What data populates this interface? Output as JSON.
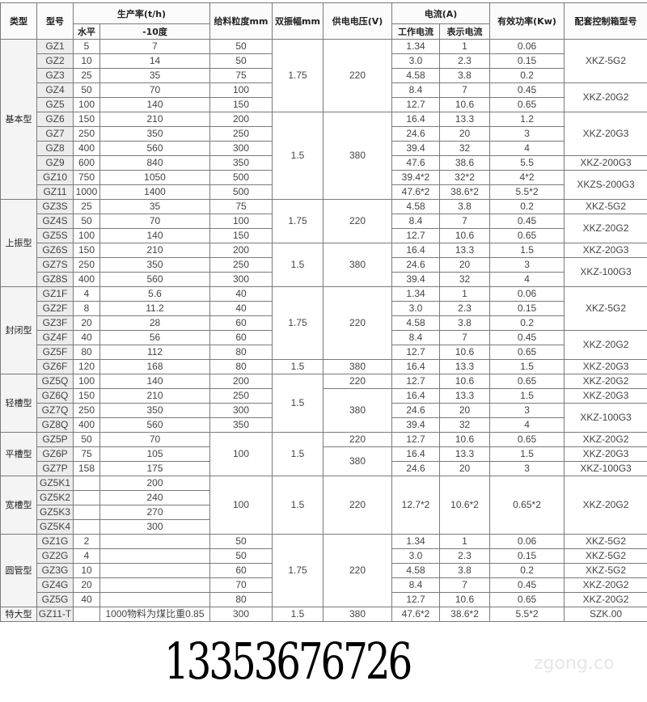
{
  "header": {
    "type": "类型",
    "model": "型号",
    "capacity": "生产率(t/h)",
    "horizontal": "水平",
    "minus10": "-10度",
    "feed_size": "给料粒度mm",
    "amplitude": "双振幅mm",
    "voltage": "供电电压(V)",
    "current": "电流(A)",
    "working_current": "工作电流",
    "indicated_current": "表示电流",
    "power": "有效功率(Kw)",
    "control_box": "配套控制箱型号"
  },
  "rows": [
    [
      "基本型",
      "GZ1",
      "5",
      "7",
      "50",
      "1.75",
      "220",
      "1.34",
      "1",
      "0.06",
      "XKZ-5G2"
    ],
    [
      null,
      "GZ2",
      "10",
      "14",
      "50",
      null,
      null,
      "3.0",
      "2.3",
      "0.15",
      null
    ],
    [
      null,
      "GZ3",
      "25",
      "35",
      "75",
      null,
      null,
      "4.58",
      "3.8",
      "0.2",
      null
    ],
    [
      null,
      "GZ4",
      "50",
      "70",
      "100",
      null,
      null,
      "8.4",
      "7",
      "0.45",
      "XKZ-20G2"
    ],
    [
      null,
      "GZ5",
      "100",
      "140",
      "150",
      null,
      null,
      "12.7",
      "10.6",
      "0.65",
      null
    ],
    [
      null,
      "GZ6",
      "150",
      "210",
      "200",
      "1.5",
      "380",
      "16.4",
      "13.3",
      "1.2",
      "XKZ-20G3"
    ],
    [
      null,
      "GZ7",
      "250",
      "350",
      "250",
      null,
      null,
      "24.6",
      "20",
      "3",
      null
    ],
    [
      null,
      "GZ8",
      "400",
      "560",
      "300",
      null,
      null,
      "39.4",
      "32",
      "4",
      null
    ],
    [
      null,
      "GZ9",
      "600",
      "840",
      "350",
      null,
      null,
      "47.6",
      "38.6",
      "5.5",
      "XKZ-200G3"
    ],
    [
      null,
      "GZ10",
      "750",
      "1050",
      "500",
      null,
      null,
      "39.4*2",
      "32*2",
      "4*2",
      "XKZS-200G3"
    ],
    [
      null,
      "GZ11",
      "1000",
      "1400",
      "500",
      null,
      null,
      "47.6*2",
      "38.6*2",
      "5.5*2",
      null
    ],
    [
      "上振型",
      "GZ3S",
      "25",
      "35",
      "75",
      "1.75",
      "220",
      "4.58",
      "3.8",
      "0.2",
      "XKZ-5G2"
    ],
    [
      null,
      "GZ4S",
      "50",
      "70",
      "100",
      null,
      null,
      "8.4",
      "7",
      "0.45",
      "XKZ-20G2"
    ],
    [
      null,
      "GZ5S",
      "100",
      "140",
      "150",
      null,
      null,
      "12.7",
      "10.6",
      "0.65",
      null
    ],
    [
      null,
      "GZ6S",
      "150",
      "210",
      "200",
      "1.5",
      "380",
      "16.4",
      "13.3",
      "1.5",
      "XKZ-20G3"
    ],
    [
      null,
      "GZ7S",
      "250",
      "350",
      "250",
      null,
      null,
      "24.6",
      "20",
      "3",
      "XKZ-100G3"
    ],
    [
      null,
      "GZ8S",
      "400",
      "560",
      "300",
      null,
      null,
      "39.4",
      "32",
      "4",
      null
    ],
    [
      "封闭型",
      "GZ1F",
      "4",
      "5.6",
      "40",
      "1.75",
      "220",
      "1.34",
      "1",
      "0.06",
      "XKZ-5G2"
    ],
    [
      null,
      "GZ2F",
      "8",
      "11.2",
      "40",
      null,
      null,
      "3.0",
      "2.3",
      "0.15",
      null
    ],
    [
      null,
      "GZ3F",
      "20",
      "28",
      "60",
      null,
      null,
      "4.58",
      "3.8",
      "0.2",
      null
    ],
    [
      null,
      "GZ4F",
      "40",
      "56",
      "60",
      null,
      null,
      "8.4",
      "7",
      "0.45",
      "XKZ-20G2"
    ],
    [
      null,
      "GZ5F",
      "80",
      "112",
      "80",
      null,
      null,
      "12.7",
      "10.6",
      "0.65",
      null
    ],
    [
      null,
      "GZ6F",
      "120",
      "168",
      "80",
      "1.5",
      "380",
      "16.4",
      "13.3",
      "1.5",
      "XKZ-20G3"
    ],
    [
      "轻槽型",
      "GZ5Q",
      "100",
      "140",
      "200",
      "1.5",
      "220",
      "12.7",
      "10.6",
      "0.65",
      "XKZ-20G2"
    ],
    [
      null,
      "GZ6Q",
      "150",
      "210",
      "250",
      null,
      "380",
      "16.4",
      "13.3",
      "1.5",
      "XKZ-20G3"
    ],
    [
      null,
      "GZ7Q",
      "250",
      "350",
      "300",
      null,
      null,
      "24.6",
      "20",
      "3",
      "XKZ-100G3"
    ],
    [
      null,
      "GZ8Q",
      "400",
      "560",
      "350",
      null,
      null,
      "39.4",
      "32",
      "4",
      null
    ],
    [
      "平槽型",
      "GZ5P",
      "50",
      "70",
      "100",
      "1.5",
      "220",
      "12.7",
      "10.6",
      "0.65",
      "XKZ-20G2"
    ],
    [
      null,
      "GZ6P",
      "75",
      "105",
      null,
      null,
      "380",
      "16.4",
      "13.3",
      "1.5",
      "XKZ-20G3"
    ],
    [
      null,
      "GZ7P",
      "158",
      "175",
      null,
      null,
      null,
      "24.6",
      "20",
      "3",
      "XKZ-100G3"
    ],
    [
      "宽槽型",
      "GZ5K1",
      "",
      "200",
      "100",
      "1.5",
      "220",
      "12.7*2",
      "10.6*2",
      "0.65*2",
      "XKZ-20G2"
    ],
    [
      null,
      "GZ5K2",
      "",
      "240",
      null,
      null,
      null,
      null,
      null,
      null,
      null
    ],
    [
      null,
      "GZ5K3",
      "",
      "270",
      null,
      null,
      null,
      null,
      null,
      null,
      null
    ],
    [
      null,
      "GZ5K4",
      "",
      "300",
      null,
      null,
      null,
      null,
      null,
      null,
      null
    ],
    [
      "圆管型",
      "GZ1G",
      "2",
      "",
      "50",
      "1.75",
      "220",
      "1.34",
      "1",
      "0.06",
      "XKZ-5G2"
    ],
    [
      null,
      "GZ2G",
      "4",
      "",
      "50",
      null,
      null,
      "3.0",
      "2.3",
      "0.15",
      "XKZ-5G2"
    ],
    [
      null,
      "GZ3G",
      "10",
      "",
      "60",
      null,
      null,
      "4.58",
      "3.8",
      "0.2",
      "XKZ-5G2"
    ],
    [
      null,
      "GZ4G",
      "20",
      "",
      "70",
      null,
      null,
      "8.4",
      "7",
      "0.45",
      "XKZ-20G2"
    ],
    [
      null,
      "GZ5G",
      "40",
      "",
      "80",
      null,
      null,
      "12.7",
      "10.6",
      "0.65",
      "XKZ-20G2"
    ],
    [
      "特大型",
      "GZ11-T",
      "",
      "1000物料为煤比重0.85",
      "300",
      "1.5",
      "380",
      "47.6*2",
      "38.6*2",
      "5.5*2",
      "SZK.00"
    ]
  ],
  "watermarks": {
    "phone": "13353676726",
    "site": "zgong.co"
  }
}
